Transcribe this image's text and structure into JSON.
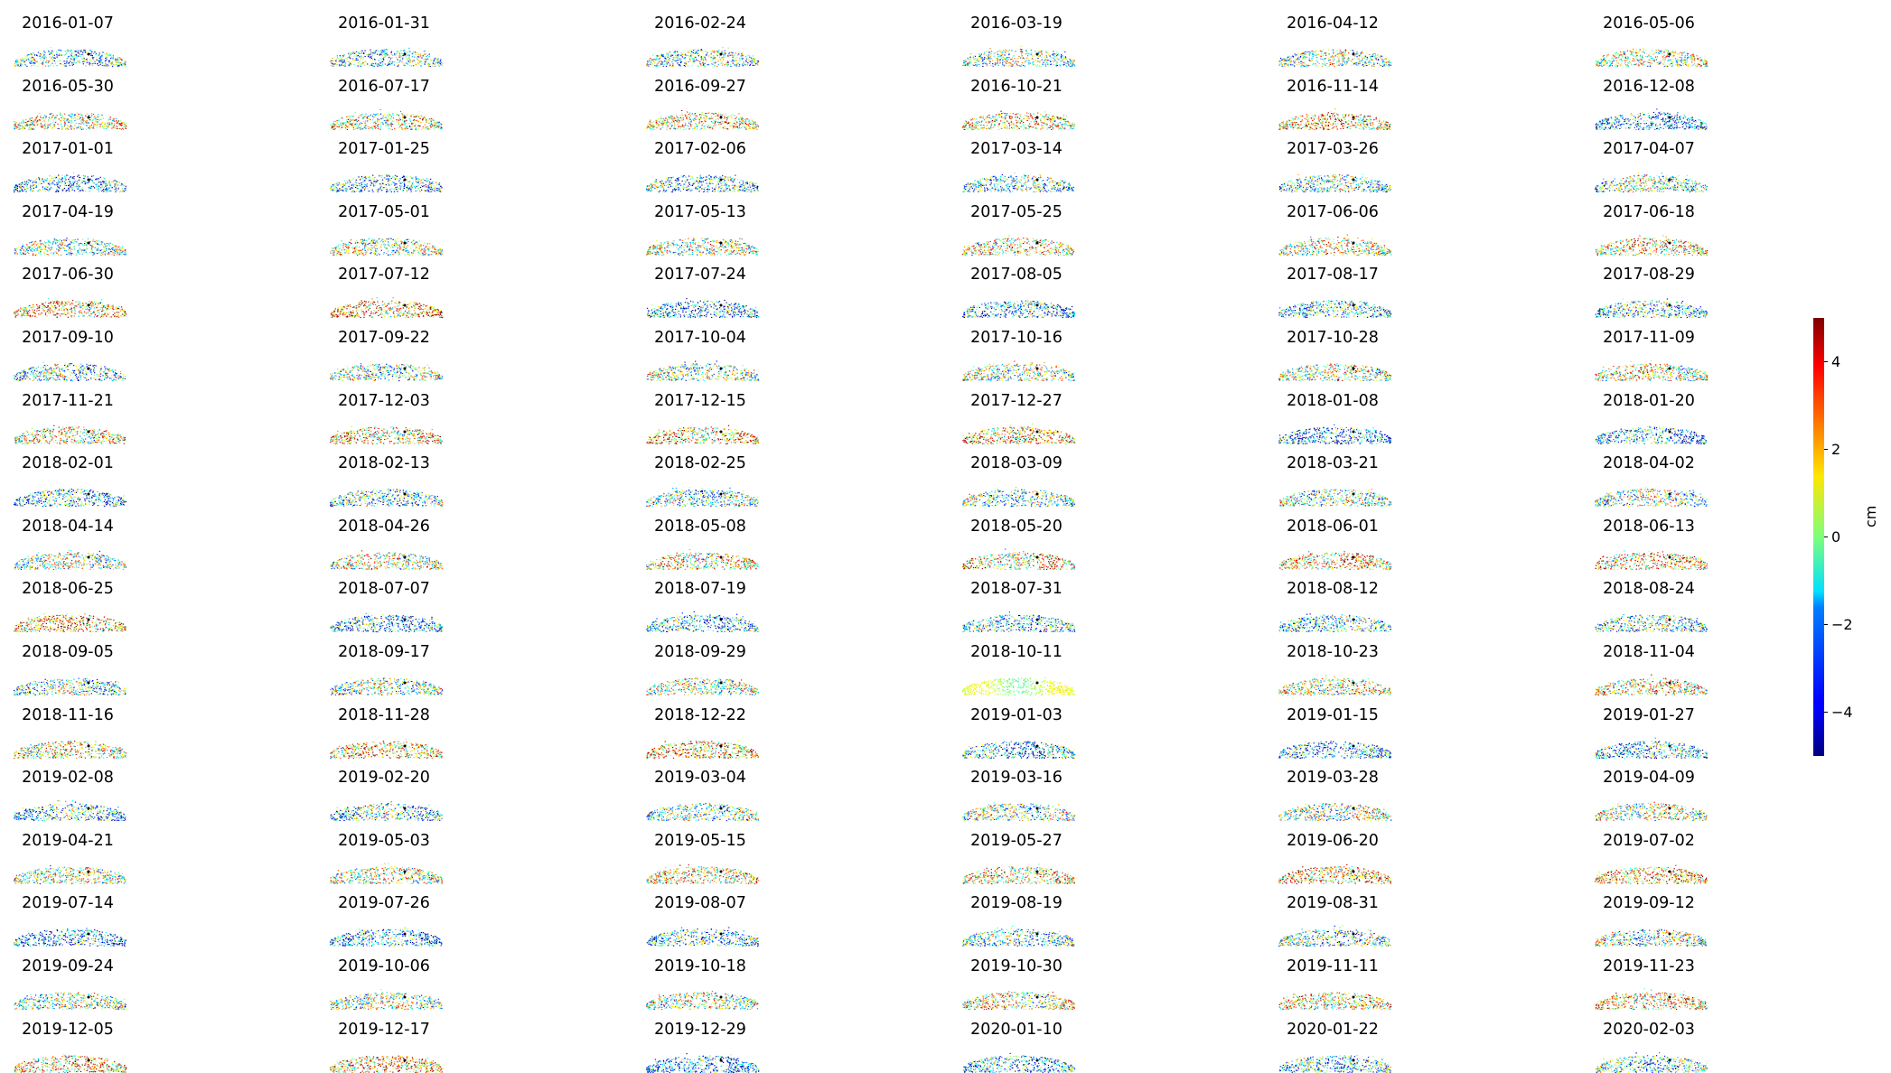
{
  "chart_data": {
    "type": "scatter",
    "colormap": "jet",
    "colorbar": {
      "label": "cm",
      "min": -5,
      "max": 5,
      "ticks": [
        "4",
        "2",
        "0",
        "−2",
        "−4"
      ],
      "tick_values": [
        4,
        2,
        0,
        -2,
        -4
      ]
    },
    "panels": [
      "2016-01-07",
      "2016-01-31",
      "2016-02-24",
      "2016-03-19",
      "2016-04-12",
      "2016-05-06",
      "2016-05-30",
      "2016-07-17",
      "2016-09-27",
      "2016-10-21",
      "2016-11-14",
      "2016-12-08",
      "2017-01-01",
      "2017-01-25",
      "2017-02-06",
      "2017-03-14",
      "2017-03-26",
      "2017-04-07",
      "2017-04-19",
      "2017-05-01",
      "2017-05-13",
      "2017-05-25",
      "2017-06-06",
      "2017-06-18",
      "2017-06-30",
      "2017-07-12",
      "2017-07-24",
      "2017-08-05",
      "2017-08-17",
      "2017-08-29",
      "2017-09-10",
      "2017-09-22",
      "2017-10-04",
      "2017-10-16",
      "2017-10-28",
      "2017-11-09",
      "2017-11-21",
      "2017-12-03",
      "2017-12-15",
      "2017-12-27",
      "2018-01-08",
      "2018-01-20",
      "2018-02-01",
      "2018-02-13",
      "2018-02-25",
      "2018-03-09",
      "2018-03-21",
      "2018-04-02",
      "2018-04-14",
      "2018-04-26",
      "2018-05-08",
      "2018-05-20",
      "2018-06-01",
      "2018-06-13",
      "2018-06-25",
      "2018-07-07",
      "2018-07-19",
      "2018-07-31",
      "2018-08-12",
      "2018-08-24",
      "2018-09-05",
      "2018-09-17",
      "2018-09-29",
      "2018-10-11",
      "2018-10-23",
      "2018-11-04",
      "2018-11-16",
      "2018-11-28",
      "2018-12-22",
      "2019-01-03",
      "2019-01-15",
      "2019-01-27",
      "2019-02-08",
      "2019-02-20",
      "2019-03-04",
      "2019-03-16",
      "2019-03-28",
      "2019-04-09",
      "2019-04-21",
      "2019-05-03",
      "2019-05-15",
      "2019-05-27",
      "2019-06-20",
      "2019-07-02",
      "2019-07-14",
      "2019-07-26",
      "2019-08-07",
      "2019-08-19",
      "2019-08-31",
      "2019-09-12",
      "2019-09-24",
      "2019-10-06",
      "2019-10-18",
      "2019-10-30",
      "2019-11-11",
      "2019-11-23",
      "2019-12-05",
      "2019-12-17",
      "2019-12-29",
      "2020-01-10",
      "2020-01-22",
      "2020-02-03"
    ],
    "layout": {
      "rows": 17,
      "cols": 6
    },
    "reference_point_color": "#000000"
  }
}
